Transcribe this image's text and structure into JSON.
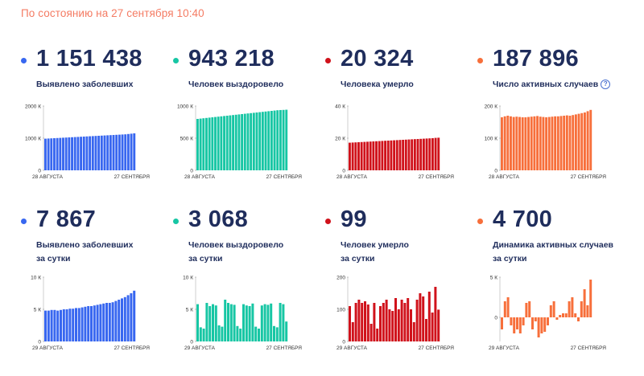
{
  "status": "По состоянию на 27 сентября 10:40",
  "cards": [
    {
      "value": "1 151 438",
      "label1": "Выявлено заболевших",
      "label2": "",
      "color": "#3867f0",
      "help": false
    },
    {
      "value": "943 218",
      "label1": "Человек выздоровело",
      "label2": "",
      "color": "#17c6a4",
      "help": false
    },
    {
      "value": "20 324",
      "label1": "Человека умерло",
      "label2": "",
      "color": "#d0121b",
      "help": false
    },
    {
      "value": "187 896",
      "label1": "Число активных случаев",
      "label2": "",
      "color": "#f76f3b",
      "help": true
    },
    {
      "value": "7 867",
      "label1": "Выявлено заболевших",
      "label2": "за сутки",
      "color": "#3867f0",
      "help": false
    },
    {
      "value": "3 068",
      "label1": "Человек выздоровело",
      "label2": "за сутки",
      "color": "#17c6a4",
      "help": false
    },
    {
      "value": "99",
      "label1": "Человек умерло",
      "label2": "за сутки",
      "color": "#d0121b",
      "help": false
    },
    {
      "value": "4 700",
      "label1": "Динамика активных случаев",
      "label2": "за сутки",
      "color": "#f76f3b",
      "help": false
    }
  ],
  "chart_data": [
    {
      "type": "bar",
      "title": "Выявлено заболевших",
      "ylim": [
        0,
        2000
      ],
      "yticks": [
        "2000 К",
        "1000 К",
        "0"
      ],
      "ytick_values": [
        2000,
        1000,
        0
      ],
      "x_start": "28 АВГУСТА",
      "x_end": "27 СЕНТЯБРЯ",
      "color": "#3867f0",
      "values": [
        985,
        990,
        995,
        1000,
        1005,
        1010,
        1015,
        1020,
        1025,
        1030,
        1035,
        1040,
        1045,
        1050,
        1055,
        1060,
        1065,
        1070,
        1075,
        1080,
        1085,
        1090,
        1095,
        1100,
        1105,
        1110,
        1115,
        1120,
        1130,
        1140,
        1151
      ]
    },
    {
      "type": "bar",
      "title": "Человек выздоровело",
      "ylim": [
        0,
        1000
      ],
      "yticks": [
        "1000 К",
        "500 К",
        "0"
      ],
      "ytick_values": [
        1000,
        500,
        0
      ],
      "x_start": "28 АВГУСТА",
      "x_end": "27 СЕНТЯБРЯ",
      "color": "#17c6a4",
      "values": [
        800,
        805,
        810,
        815,
        820,
        825,
        830,
        835,
        840,
        845,
        850,
        855,
        860,
        865,
        870,
        875,
        880,
        885,
        890,
        895,
        900,
        905,
        910,
        915,
        920,
        925,
        930,
        935,
        938,
        940,
        943
      ]
    },
    {
      "type": "bar",
      "title": "Человека умерло",
      "ylim": [
        0,
        40
      ],
      "yticks": [
        "40 К",
        "20 К",
        "0"
      ],
      "ytick_values": [
        40,
        20,
        0
      ],
      "x_start": "28 АВГУСТА",
      "x_end": "27 СЕНТЯБРЯ",
      "color": "#d0121b",
      "values": [
        17.2,
        17.3,
        17.4,
        17.5,
        17.6,
        17.7,
        17.8,
        17.9,
        18.0,
        18.1,
        18.2,
        18.3,
        18.4,
        18.5,
        18.6,
        18.7,
        18.8,
        18.9,
        19.0,
        19.1,
        19.2,
        19.3,
        19.4,
        19.5,
        19.6,
        19.7,
        19.8,
        19.9,
        20.0,
        20.2,
        20.3
      ]
    },
    {
      "type": "bar",
      "title": "Число активных случаев",
      "ylim": [
        0,
        200
      ],
      "yticks": [
        "200 К",
        "100 К",
        "0"
      ],
      "ytick_values": [
        200,
        100,
        0
      ],
      "x_start": "28 АВГУСТА",
      "x_end": "27 СЕНТЯБРЯ",
      "color": "#f76f3b",
      "values": [
        165,
        168,
        170,
        168,
        166,
        167,
        166,
        165,
        165,
        166,
        167,
        168,
        169,
        167,
        166,
        165,
        166,
        167,
        168,
        168,
        169,
        170,
        171,
        170,
        172,
        174,
        176,
        178,
        180,
        184,
        188
      ]
    },
    {
      "type": "bar",
      "title": "Выявлено заболевших за сутки",
      "ylim": [
        0,
        10
      ],
      "yticks": [
        "10 К",
        "5 К",
        "0"
      ],
      "ytick_values": [
        10,
        5,
        0
      ],
      "x_start": "29 АВГУСТА",
      "x_end": "27 СЕНТЯБРЯ",
      "color": "#3867f0",
      "values": [
        4.8,
        4.8,
        4.9,
        4.9,
        4.8,
        4.9,
        5.0,
        5.0,
        5.1,
        5.1,
        5.2,
        5.2,
        5.3,
        5.4,
        5.5,
        5.5,
        5.6,
        5.7,
        5.8,
        5.9,
        6.0,
        6.0,
        6.1,
        6.3,
        6.5,
        6.7,
        6.9,
        7.2,
        7.5,
        7.9
      ]
    },
    {
      "type": "bar",
      "title": "Человек выздоровело за сутки",
      "ylim": [
        0,
        10
      ],
      "yticks": [
        "10 К",
        "5 К",
        "0"
      ],
      "ytick_values": [
        10,
        5,
        0
      ],
      "x_start": "29 АВГУСТА",
      "x_end": "27 СЕНТЯБРЯ",
      "color": "#17c6a4",
      "values": [
        5.8,
        2.2,
        2.0,
        6.0,
        5.5,
        5.8,
        5.6,
        2.5,
        2.3,
        6.5,
        6.0,
        5.8,
        5.7,
        2.4,
        2.0,
        5.8,
        5.6,
        5.5,
        5.9,
        2.3,
        2.0,
        5.6,
        5.8,
        5.7,
        5.9,
        2.4,
        2.2,
        6.0,
        5.8,
        3.1
      ]
    },
    {
      "type": "bar",
      "title": "Человек умерло за сутки",
      "ylim": [
        0,
        200
      ],
      "yticks": [
        "200",
        "100",
        "0"
      ],
      "ytick_values": [
        200,
        100,
        0
      ],
      "x_start": "29 АВГУСТА",
      "x_end": "27 СЕНТЯБРЯ",
      "color": "#d0121b",
      "values": [
        110,
        60,
        120,
        130,
        120,
        125,
        115,
        55,
        120,
        40,
        110,
        120,
        130,
        100,
        95,
        135,
        100,
        130,
        120,
        135,
        100,
        60,
        130,
        150,
        140,
        70,
        155,
        90,
        170,
        99
      ]
    },
    {
      "type": "bar",
      "title": "Динамика активных случаев за сутки",
      "ylim": [
        -3,
        5
      ],
      "yticks": [
        "5 К",
        "0"
      ],
      "ytick_values": [
        5,
        0
      ],
      "x_start": "29 АВГУСТА",
      "x_end": "27 СЕНТЯБРЯ",
      "color": "#f76f3b",
      "values": [
        -1.5,
        2.0,
        2.5,
        -1.0,
        -2.0,
        -1.5,
        -2.0,
        -1.0,
        1.8,
        2.0,
        -1.5,
        -0.5,
        -2.5,
        -2.0,
        -1.8,
        -1.0,
        1.5,
        2.0,
        -0.3,
        0.3,
        0.5,
        0.5,
        2.0,
        2.5,
        0.5,
        -0.5,
        2.0,
        3.5,
        1.5,
        4.7
      ]
    }
  ]
}
